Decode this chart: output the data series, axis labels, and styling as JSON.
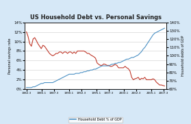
{
  "title": "US Household Debt vs. Personal Savings",
  "legend_label": "Household Debt % of GDP",
  "ylabel_left": "Personal savings rate",
  "ylabel_right": "Household debts of GDP",
  "background_color": "#d6e8f7",
  "plot_bg_color": "#ffffff",
  "savings_color": "#c0392b",
  "debt_color": "#4a90c4",
  "x_labels": [
    "1982.3",
    "1985.1",
    "1987.3",
    "1990.1",
    "1992.3",
    "1995.1",
    "1997.3",
    "2000.1",
    "2002.3",
    "2005.1",
    "2007.3"
  ],
  "x_tick_pos": [
    1982.3,
    1985.1,
    1987.3,
    1990.1,
    1992.3,
    1995.1,
    1997.3,
    2000.1,
    2002.3,
    2005.1,
    2007.3
  ],
  "years": [
    1982.3,
    1982.6,
    1982.9,
    1983.2,
    1983.5,
    1983.8,
    1984.1,
    1984.4,
    1984.7,
    1985.0,
    1985.3,
    1985.6,
    1985.9,
    1986.2,
    1986.5,
    1986.8,
    1987.1,
    1987.4,
    1987.7,
    1988.0,
    1988.3,
    1988.6,
    1988.9,
    1989.2,
    1989.5,
    1989.8,
    1990.1,
    1990.4,
    1990.7,
    1991.0,
    1991.3,
    1991.6,
    1991.9,
    1992.2,
    1992.5,
    1992.8,
    1993.1,
    1993.4,
    1993.7,
    1994.0,
    1994.3,
    1994.6,
    1994.9,
    1995.2,
    1995.5,
    1995.8,
    1996.1,
    1996.4,
    1996.7,
    1997.0,
    1997.3,
    1997.6,
    1997.9,
    1998.2,
    1998.5,
    1998.8,
    1999.1,
    1999.4,
    1999.7,
    2000.0,
    2000.3,
    2000.6,
    2000.9,
    2001.2,
    2001.5,
    2001.8,
    2002.1,
    2002.4,
    2002.7,
    2003.0,
    2003.3,
    2003.6,
    2003.9,
    2004.2,
    2004.5,
    2004.8,
    2005.1,
    2005.4,
    2005.7,
    2006.0,
    2006.3,
    2006.6,
    2006.9,
    2007.2,
    2007.5
  ],
  "savings": [
    12.0,
    11.0,
    9.5,
    9.0,
    10.5,
    10.8,
    10.2,
    9.5,
    9.0,
    8.5,
    9.2,
    9.0,
    8.5,
    8.0,
    7.5,
    7.2,
    7.0,
    7.2,
    7.5,
    7.5,
    7.8,
    7.8,
    7.5,
    7.8,
    7.8,
    7.5,
    7.8,
    7.8,
    7.5,
    7.8,
    7.5,
    8.0,
    8.0,
    8.0,
    8.0,
    8.0,
    7.8,
    7.5,
    7.5,
    7.2,
    7.0,
    6.8,
    6.5,
    5.5,
    5.2,
    5.0,
    5.0,
    5.3,
    5.2,
    5.0,
    5.0,
    4.8,
    4.8,
    5.0,
    5.2,
    5.0,
    4.5,
    4.5,
    4.5,
    4.5,
    4.8,
    4.5,
    4.3,
    3.8,
    2.5,
    2.0,
    2.2,
    2.3,
    2.5,
    2.0,
    2.3,
    2.2,
    2.5,
    2.0,
    2.0,
    2.0,
    2.0,
    2.2,
    2.0,
    1.5,
    1.2,
    0.9,
    0.9,
    0.8,
    0.7
  ],
  "debt_pct": [
    62,
    62,
    62,
    62,
    63,
    63,
    64,
    65,
    66,
    67,
    67,
    68,
    68,
    68,
    68,
    68,
    68,
    69,
    70,
    71,
    72,
    73,
    74,
    75,
    76,
    77,
    78,
    78,
    78,
    78,
    79,
    79,
    79,
    80,
    80,
    81,
    81,
    82,
    82,
    83,
    83,
    84,
    84,
    85,
    86,
    87,
    88,
    88,
    88,
    88,
    88,
    89,
    90,
    90,
    91,
    91,
    92,
    92,
    93,
    94,
    95,
    96,
    96,
    97,
    98,
    98,
    99,
    100,
    101,
    103,
    105,
    108,
    110,
    113,
    116,
    119,
    122,
    125,
    127,
    128,
    129,
    130,
    131,
    132,
    133
  ],
  "left_ylim": [
    0,
    14
  ],
  "right_ylim": [
    60,
    140
  ],
  "left_yticks": [
    0,
    2,
    4,
    6,
    8,
    10,
    12,
    14
  ],
  "right_yticks": [
    60,
    70,
    80,
    90,
    100,
    110,
    120,
    130,
    140
  ]
}
